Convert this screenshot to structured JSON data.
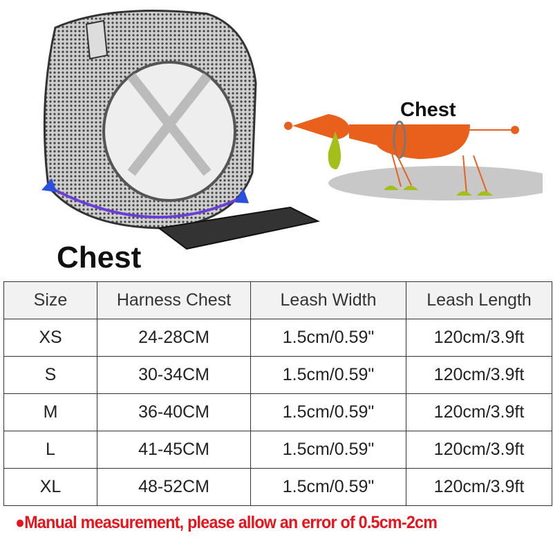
{
  "illustration": {
    "harness_label": "Chest",
    "dog_label": "Chest",
    "colors": {
      "dog_body": "#e8601c",
      "dog_accent": "#a3c01a",
      "shadow": "#c8c8c8",
      "measure_arrow": "#6a3fd8"
    }
  },
  "size_table": {
    "headers": [
      "Size",
      "Harness Chest",
      "Leash Width",
      "Leash Length"
    ],
    "rows": [
      [
        "XS",
        "24-28CM",
        "1.5cm/0.59\"",
        "120cm/3.9ft"
      ],
      [
        "S",
        "30-34CM",
        "1.5cm/0.59\"",
        "120cm/3.9ft"
      ],
      [
        "M",
        "36-40CM",
        "1.5cm/0.59\"",
        "120cm/3.9ft"
      ],
      [
        "L",
        "41-45CM",
        "1.5cm/0.59\"",
        "120cm/3.9ft"
      ],
      [
        "XL",
        "48-52CM",
        "1.5cm/0.59\"",
        "120cm/3.9ft"
      ]
    ]
  },
  "note": "●Manual measurement, please allow an error of 0.5cm-2cm",
  "note_color": "#e8141b"
}
